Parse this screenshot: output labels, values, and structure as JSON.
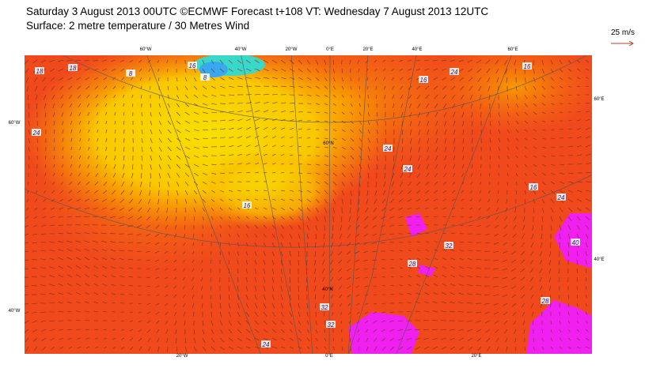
{
  "header": {
    "line1": "Saturday 3 August 2013 00UTC ©ECMWF Forecast t+108 VT: Wednesday 7 August 2013 12UTC",
    "line2": "Surface: 2 metre temperature / 30 Metres Wind"
  },
  "legend": {
    "wind_scale": "25 m/s"
  },
  "graticule_labels": [
    "60°W",
    "40°W",
    "20°W",
    "0°E",
    "20°E",
    "40°E",
    "60°E",
    "60°W",
    "40°W",
    "60°E",
    "40°E",
    "20°W",
    "0°E",
    "20°E",
    "60°N",
    "40°N"
  ],
  "contour_labels": [
    "18",
    "18",
    "8",
    "16",
    "8",
    "24",
    "16",
    "16",
    "24",
    "16",
    "24",
    "24",
    "16",
    "24",
    "32",
    "28",
    "40",
    "32",
    "32",
    "24",
    "28"
  ]
}
